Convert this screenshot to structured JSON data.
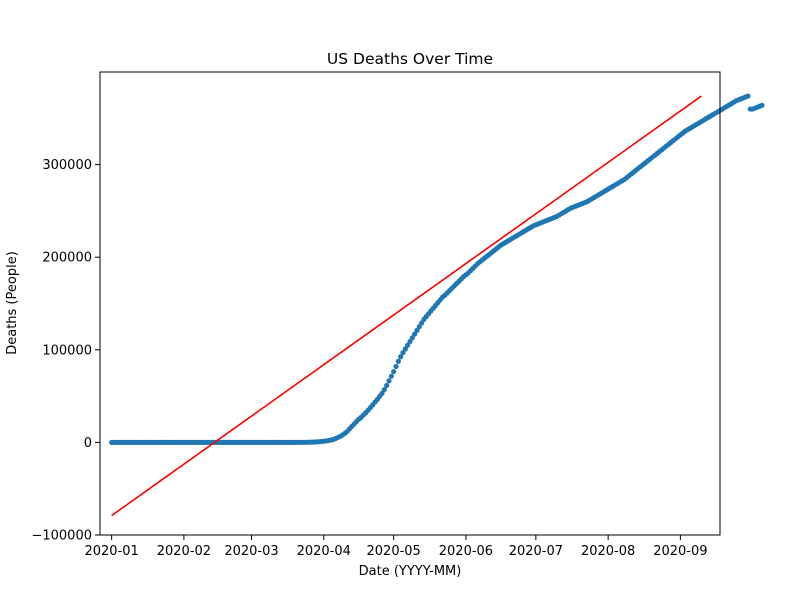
{
  "chart_data": {
    "type": "scatter",
    "title": "US Deaths Over Time",
    "xlabel": "Date (YYYY-MM)",
    "ylabel": "Deaths (People)",
    "xlim": [
      "2019-12-27",
      "2020-09-18"
    ],
    "ylim": [
      -100000,
      400000
    ],
    "grid": false,
    "x_ticks": [
      "2020-01",
      "2020-02",
      "2020-03",
      "2020-04",
      "2020-05",
      "2020-06",
      "2020-07",
      "2020-08",
      "2020-09"
    ],
    "y_ticks": [
      -100000,
      0,
      100000,
      200000,
      300000
    ],
    "series": [
      {
        "kind": "scatter",
        "color": "#1f77b4",
        "x_start": "2020-01-01",
        "y": [
          0,
          0,
          0,
          0,
          0,
          0,
          0,
          0,
          0,
          0,
          0,
          0,
          0,
          0,
          0,
          0,
          0,
          0,
          0,
          0,
          0,
          0,
          0,
          0,
          0,
          0,
          0,
          0,
          0,
          0,
          0,
          0,
          0,
          0,
          0,
          0,
          0,
          0,
          0,
          0,
          0,
          0,
          0,
          0,
          0,
          0,
          0,
          0,
          0,
          0,
          0,
          0,
          0,
          0,
          0,
          0,
          0,
          0,
          0,
          0,
          0,
          0,
          0,
          0,
          0,
          0,
          0,
          0,
          0,
          0,
          0,
          0,
          0,
          1,
          2,
          7,
          10,
          20,
          29,
          43,
          63,
          75,
          101,
          106,
          160,
          244,
          301,
          410,
          577,
          743,
          1000,
          1280,
          1574,
          1987,
          2525,
          3134,
          4044,
          5214,
          6461,
          7978,
          9691,
          11700,
          14500,
          17200,
          19800,
          22400,
          25000,
          27000,
          29500,
          32000,
          34700,
          37500,
          40500,
          43500,
          46500,
          49800,
          53000,
          57000,
          61500,
          66500,
          71500,
          76500,
          82000,
          87500,
          92500,
          97000,
          101000,
          105000,
          109000,
          113000,
          117000,
          121000,
          125000,
          129000,
          133000,
          136000,
          139000,
          142000,
          145000,
          148000,
          151000,
          154000,
          157000,
          159000,
          161500,
          164000,
          166500,
          169000,
          171500,
          174000,
          176500,
          179000,
          181000,
          183000,
          185500,
          188000,
          190500,
          193000,
          195000,
          197000,
          199000,
          201000,
          203000,
          205000,
          207000,
          209000,
          211000,
          213000,
          214500,
          216000,
          217500,
          219000,
          220500,
          222000,
          223500,
          225000,
          226500,
          228000,
          229500,
          231000,
          232500,
          234000,
          235000,
          236000,
          237000,
          238000,
          239000,
          240000,
          241000,
          242000,
          243000,
          244000,
          245500,
          247000,
          248500,
          250000,
          251500,
          253000,
          254000,
          255000,
          256000,
          257000,
          258000,
          259000,
          260000,
          261500,
          263000,
          264500,
          266000,
          267500,
          269000,
          270500,
          272000,
          273500,
          275000,
          276500,
          278000,
          279500,
          281000,
          282500,
          284000,
          286000,
          288000,
          290000,
          292000,
          294000,
          296000,
          298000,
          300000,
          302000,
          304000,
          306000,
          308000,
          310000,
          312000,
          314000,
          316000,
          318000,
          320000,
          322000,
          324000,
          326000,
          328000,
          330000,
          332000,
          334000,
          336000,
          337500,
          339000,
          340500,
          342000,
          343500,
          345000,
          346500,
          348000,
          349500,
          351000,
          352500,
          354000,
          355500,
          357000,
          358500,
          360000,
          361500,
          363000,
          364500,
          366000,
          367500,
          369000,
          370000,
          371000,
          372000,
          373000,
          374000,
          360000,
          360000,
          361000,
          362000,
          363000,
          364000
        ]
      },
      {
        "kind": "line",
        "color": "#ff0000",
        "x": [
          "2020-01-01",
          "2020-09-10"
        ],
        "y": [
          -79000,
          374000
        ]
      }
    ]
  }
}
